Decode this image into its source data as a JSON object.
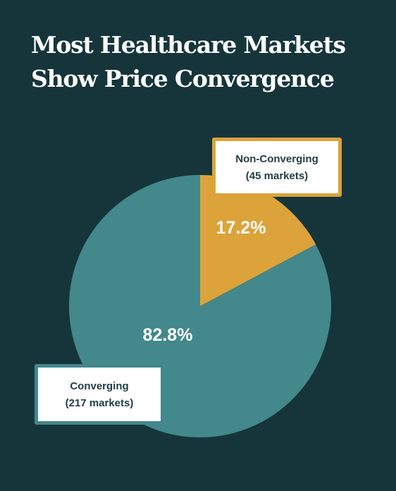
{
  "title": {
    "line1": "Most Healthcare Markets",
    "line2": "Show Price Convergence"
  },
  "colors": {
    "background": "#15353b",
    "converging": "#43888a",
    "non_converging": "#dba33a"
  },
  "chart_data": {
    "type": "pie",
    "title": "Most Healthcare Markets Show Price Convergence",
    "slices": [
      {
        "name": "Non-Converging",
        "label": "Non-Converging",
        "sublabel": "(45 markets)",
        "markets": 45,
        "percent": 17.2,
        "percent_label": "17.2%",
        "color": "#dba33a"
      },
      {
        "name": "Converging",
        "label": "Converging",
        "sublabel": "(217 markets)",
        "markets": 217,
        "percent": 82.8,
        "percent_label": "82.8%",
        "color": "#43888a"
      }
    ]
  }
}
